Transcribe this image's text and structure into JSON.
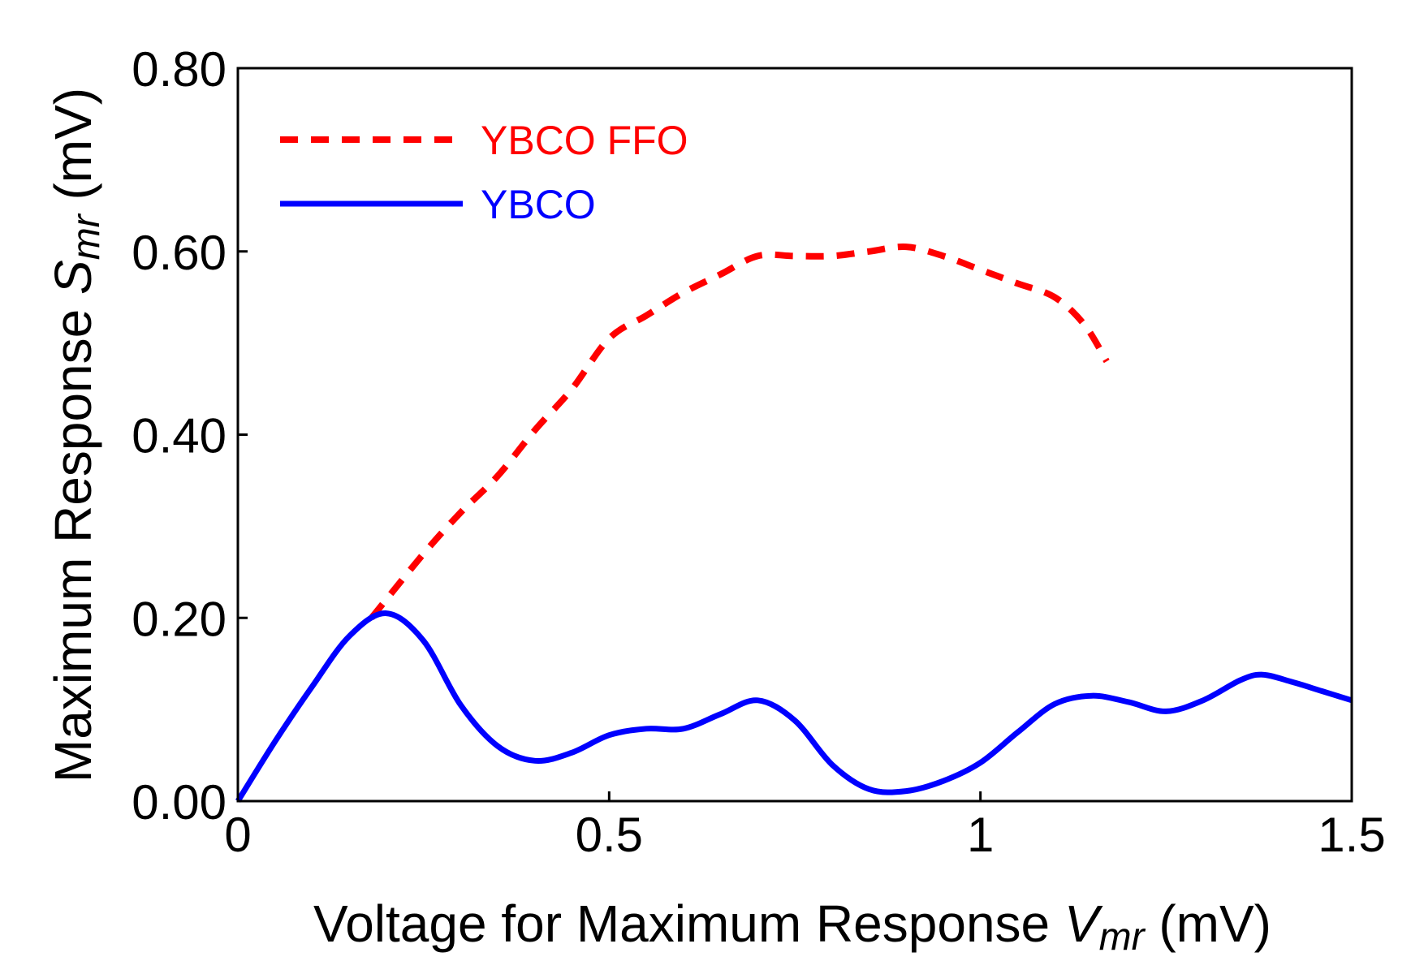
{
  "chart_data": {
    "type": "line",
    "xlabel": {
      "main": "Voltage for Maximum Response ",
      "symbol": "V",
      "subscript": "mr",
      "unit": " (mV)"
    },
    "ylabel": {
      "main": "Maximum Response ",
      "symbol": "S",
      "subscript": "mr",
      "unit": " (mV)"
    },
    "xlim": [
      0,
      1.5
    ],
    "ylim": [
      0,
      0.8
    ],
    "x_ticks": [
      0,
      0.5,
      1,
      1.5
    ],
    "x_tick_labels": [
      "0",
      "0.5",
      "1",
      "1.5"
    ],
    "y_ticks": [
      0,
      0.2,
      0.4,
      0.6,
      0.8
    ],
    "y_tick_labels": [
      "0.00",
      "0.20",
      "0.40",
      "0.60",
      "0.80"
    ],
    "grid": false,
    "legend_position": "top-left",
    "series": [
      {
        "name": "YBCO FFO",
        "color": "#ff0000",
        "style": "dashed",
        "x": [
          0.18,
          0.25,
          0.3,
          0.35,
          0.4,
          0.45,
          0.5,
          0.55,
          0.6,
          0.65,
          0.7,
          0.75,
          0.8,
          0.85,
          0.9,
          0.95,
          1.0,
          1.05,
          1.1,
          1.14,
          1.17
        ],
        "y": [
          0.2,
          0.27,
          0.315,
          0.355,
          0.405,
          0.45,
          0.505,
          0.53,
          0.555,
          0.575,
          0.595,
          0.595,
          0.595,
          0.6,
          0.605,
          0.595,
          0.58,
          0.565,
          0.55,
          0.52,
          0.48
        ]
      },
      {
        "name": "YBCO",
        "color": "#0000ff",
        "style": "solid",
        "x": [
          0,
          0.05,
          0.1,
          0.15,
          0.2,
          0.25,
          0.3,
          0.35,
          0.4,
          0.45,
          0.5,
          0.55,
          0.6,
          0.65,
          0.7,
          0.75,
          0.8,
          0.85,
          0.9,
          0.95,
          1.0,
          1.05,
          1.1,
          1.15,
          1.2,
          1.25,
          1.3,
          1.35,
          1.38,
          1.42,
          1.46,
          1.5
        ],
        "y": [
          0.0,
          0.065,
          0.125,
          0.18,
          0.205,
          0.175,
          0.105,
          0.06,
          0.044,
          0.053,
          0.072,
          0.079,
          0.079,
          0.095,
          0.11,
          0.088,
          0.04,
          0.013,
          0.011,
          0.022,
          0.042,
          0.075,
          0.106,
          0.115,
          0.108,
          0.098,
          0.11,
          0.132,
          0.138,
          0.13,
          0.12,
          0.11
        ]
      }
    ]
  }
}
